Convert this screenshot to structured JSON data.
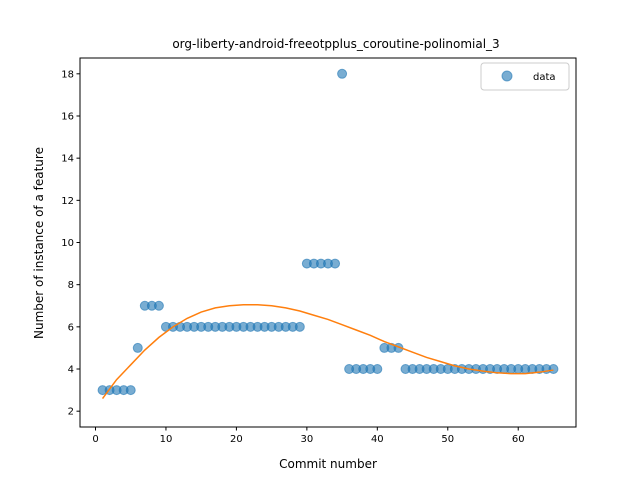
{
  "chart_data": {
    "type": "scatter",
    "title": "org-liberty-android-freeotpplus_coroutine-polinomial_3",
    "xlabel": "Commit number",
    "ylabel": "Number of instance of a feature",
    "xlim": [
      -2.2,
      68.2
    ],
    "ylim": [
      1.25,
      18.75
    ],
    "xticks": [
      0,
      10,
      20,
      30,
      40,
      50,
      60
    ],
    "yticks": [
      2,
      4,
      6,
      8,
      10,
      12,
      14,
      16,
      18
    ],
    "grid": false,
    "legend": {
      "placement": "top-right",
      "entries": [
        "data"
      ]
    },
    "series": [
      {
        "name": "data",
        "kind": "scatter",
        "color": "#1f77b4",
        "x": [
          1,
          2,
          3,
          4,
          5,
          6,
          7,
          8,
          9,
          10,
          11,
          12,
          13,
          14,
          15,
          16,
          17,
          18,
          19,
          20,
          21,
          22,
          23,
          24,
          25,
          26,
          27,
          28,
          29,
          30,
          31,
          32,
          33,
          34,
          35,
          36,
          37,
          38,
          39,
          40,
          41,
          42,
          43,
          44,
          45,
          46,
          47,
          48,
          49,
          50,
          51,
          52,
          53,
          54,
          55,
          56,
          57,
          58,
          59,
          60,
          61,
          62,
          63,
          64,
          65
        ],
        "y": [
          3,
          3,
          3,
          3,
          3,
          5,
          7,
          7,
          7,
          6,
          6,
          6,
          6,
          6,
          6,
          6,
          6,
          6,
          6,
          6,
          6,
          6,
          6,
          6,
          6,
          6,
          6,
          6,
          6,
          9,
          9,
          9,
          9,
          9,
          18,
          4,
          4,
          4,
          4,
          4,
          5,
          5,
          5,
          4,
          4,
          4,
          4,
          4,
          4,
          4,
          4,
          4,
          4,
          4,
          4,
          4,
          4,
          4,
          4,
          4,
          4,
          4,
          4,
          4,
          4
        ]
      },
      {
        "kind": "line",
        "color": "#ff7f0e",
        "x": [
          1,
          3,
          5,
          7,
          9,
          11,
          13,
          15,
          17,
          19,
          21,
          23,
          25,
          27,
          29,
          31,
          33,
          35,
          37,
          39,
          41,
          43,
          45,
          47,
          49,
          51,
          53,
          55,
          57,
          59,
          61,
          63,
          65
        ],
        "y": [
          2.6,
          3.5,
          4.2,
          4.9,
          5.5,
          6.0,
          6.4,
          6.7,
          6.9,
          7.0,
          7.05,
          7.05,
          7.0,
          6.9,
          6.75,
          6.55,
          6.35,
          6.1,
          5.85,
          5.6,
          5.3,
          5.05,
          4.8,
          4.55,
          4.35,
          4.15,
          4.0,
          3.9,
          3.82,
          3.78,
          3.78,
          3.85,
          3.95
        ]
      }
    ]
  }
}
